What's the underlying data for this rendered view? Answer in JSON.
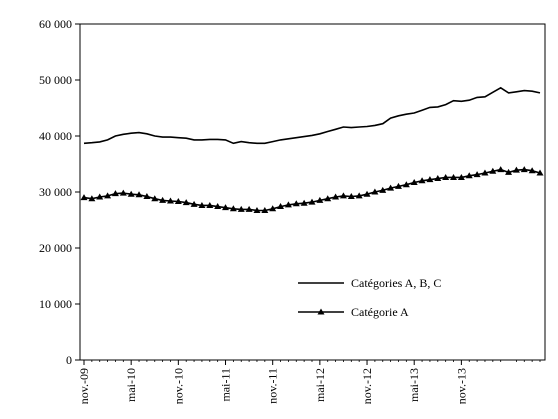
{
  "chart_data": {
    "type": "line",
    "title": "",
    "xlabel": "",
    "ylabel": "",
    "ylim": [
      0,
      60000
    ],
    "yticks": [
      "0",
      "10 000",
      "20 000",
      "30 000",
      "40 000",
      "50 000",
      "60 000"
    ],
    "ytick_values": [
      0,
      10000,
      20000,
      30000,
      40000,
      50000,
      60000
    ],
    "xticks": [
      "nov.-09",
      "mai-10",
      "nov.-10",
      "mai-11",
      "nov.-11",
      "mai-12",
      "nov.-12",
      "mai-13",
      "nov.-13"
    ],
    "grid": false,
    "legend_position": "bottom-right",
    "series": [
      {
        "name": "Catégories A, B, C",
        "marker": "none",
        "color": "#000000",
        "values": [
          38700,
          38800,
          38950,
          39300,
          40000,
          40300,
          40500,
          40600,
          40400,
          40000,
          39800,
          39800,
          39700,
          39600,
          39300,
          39300,
          39400,
          39400,
          39300,
          38700,
          39000,
          38800,
          38700,
          38700,
          39000,
          39300,
          39500,
          39700,
          39900,
          40100,
          40400,
          40800,
          41200,
          41600,
          41500,
          41600,
          41700,
          41900,
          42200,
          43200,
          43600,
          43900,
          44100,
          44600,
          45100,
          45200,
          45600,
          46300,
          46200,
          46400,
          46900,
          47000,
          47800,
          48600,
          47700,
          47900,
          48100,
          48000,
          47700
        ]
      },
      {
        "name": "Catégorie A",
        "marker": "triangle",
        "color": "#000000",
        "values": [
          29000,
          28800,
          29100,
          29300,
          29700,
          29800,
          29600,
          29500,
          29200,
          28800,
          28500,
          28400,
          28300,
          28100,
          27800,
          27600,
          27600,
          27400,
          27200,
          27000,
          26900,
          26900,
          26700,
          26700,
          27000,
          27400,
          27700,
          27900,
          28000,
          28200,
          28500,
          28800,
          29100,
          29300,
          29200,
          29300,
          29600,
          30000,
          30300,
          30700,
          31000,
          31300,
          31700,
          32000,
          32200,
          32400,
          32600,
          32600,
          32600,
          32900,
          33100,
          33400,
          33700,
          34000,
          33500,
          33900,
          34000,
          33800,
          33400
        ]
      }
    ]
  }
}
